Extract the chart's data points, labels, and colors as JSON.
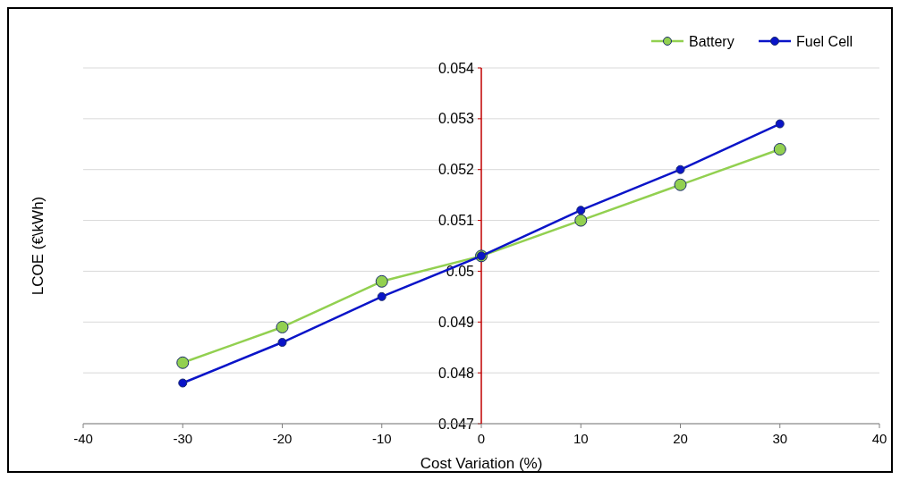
{
  "chart_data": {
    "type": "line",
    "xlabel": "Cost Variation (%)",
    "ylabel": "LCOE (€\\kWh)",
    "x": [
      -30,
      -20,
      -10,
      0,
      10,
      20,
      30
    ],
    "series": [
      {
        "name": "Battery",
        "color": "#92d050",
        "values": [
          0.0482,
          0.0489,
          0.0498,
          0.0503,
          0.051,
          0.0517,
          0.0524
        ]
      },
      {
        "name": "Fuel Cell",
        "color": "#0a14c8",
        "values": [
          0.0478,
          0.0486,
          0.0495,
          0.0503,
          0.0512,
          0.052,
          0.0529
        ]
      }
    ],
    "xlim": [
      -40,
      40
    ],
    "xticks": [
      -40,
      -30,
      -20,
      -10,
      0,
      10,
      20,
      30,
      40
    ],
    "ylim": [
      0.047,
      0.054
    ],
    "yticks": [
      0.047,
      0.048,
      0.049,
      0.05,
      0.051,
      0.052,
      0.053,
      0.054
    ],
    "grid": "y",
    "legend": "top right",
    "marker": "circle",
    "line_style": "solid"
  }
}
